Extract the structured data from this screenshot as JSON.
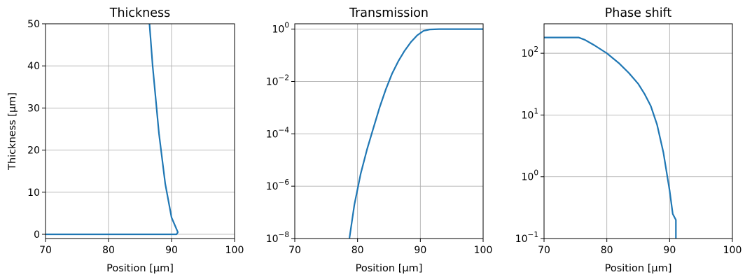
{
  "colors": {
    "series": "#1f77b4",
    "grid": "#b0b0b0"
  },
  "chart_data": [
    {
      "type": "line",
      "title": "Thickness",
      "xlabel": "Position [μm]",
      "ylabel": "Thickness [μm]",
      "xlim": [
        70,
        100
      ],
      "ylim": [
        -1,
        50
      ],
      "yscale": "linear",
      "grid": true,
      "xticks": [
        70,
        80,
        90,
        100
      ],
      "yticks": [
        0,
        10,
        20,
        30,
        40,
        50
      ],
      "x": [
        70,
        80,
        90.8,
        91,
        90,
        89,
        88,
        87,
        86.5,
        86
      ],
      "y": [
        0,
        0,
        0,
        0.5,
        4,
        12,
        24,
        40,
        50,
        50.3
      ]
    },
    {
      "type": "line",
      "title": "Transmission",
      "xlabel": "Position [μm]",
      "ylabel": "",
      "xlim": [
        70,
        100
      ],
      "ylim": [
        1e-08,
        1.6
      ],
      "yscale": "log",
      "grid": true,
      "xticks": [
        70,
        80,
        90,
        100
      ],
      "yticks": [
        1e-08,
        1e-06,
        0.0001,
        0.01,
        1
      ],
      "ytick_labels": [
        {
          "base": "10",
          "exp": "−8"
        },
        {
          "base": "10",
          "exp": "−6"
        },
        {
          "base": "10",
          "exp": "−4"
        },
        {
          "base": "10",
          "exp": "−2"
        },
        {
          "base": "10",
          "exp": "0"
        }
      ],
      "x": [
        78.7,
        79.5,
        80.5,
        81.5,
        82.5,
        83.5,
        84.5,
        85.5,
        86.5,
        87.5,
        88.5,
        89.5,
        90.5,
        91.5,
        93,
        95,
        100
      ],
      "y": [
        1e-08,
        2e-07,
        3e-06,
        2.5e-05,
        0.00016,
        0.001,
        0.005,
        0.02,
        0.06,
        0.15,
        0.32,
        0.58,
        0.86,
        0.97,
        1,
        1,
        1
      ]
    },
    {
      "type": "line",
      "title": "Phase shift",
      "xlabel": "Position [μm]",
      "ylabel": "",
      "xlim": [
        70,
        100
      ],
      "ylim": [
        0.1,
        300
      ],
      "yscale": "log",
      "grid": true,
      "xticks": [
        70,
        80,
        90,
        100
      ],
      "yticks": [
        0.1,
        1,
        10,
        100
      ],
      "ytick_labels": [
        {
          "base": "10",
          "exp": "−1"
        },
        {
          "base": "10",
          "exp": "0"
        },
        {
          "base": "10",
          "exp": "1"
        },
        {
          "base": "10",
          "exp": "2"
        }
      ],
      "x": [
        70,
        72,
        74,
        75.5,
        76.5,
        78,
        80,
        82,
        83.5,
        85,
        86,
        87,
        88,
        89,
        90,
        90.5,
        91,
        91
      ],
      "y": [
        180,
        180,
        180,
        180,
        165,
        135,
        100,
        68,
        48,
        32,
        22,
        14,
        7,
        2.5,
        0.6,
        0.25,
        0.2,
        0.1
      ]
    }
  ]
}
